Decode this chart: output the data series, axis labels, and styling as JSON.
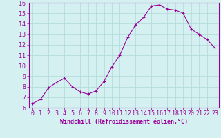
{
  "x": [
    0,
    1,
    2,
    3,
    4,
    5,
    6,
    7,
    8,
    9,
    10,
    11,
    12,
    13,
    14,
    15,
    16,
    17,
    18,
    19,
    20,
    21,
    22,
    23
  ],
  "y": [
    6.4,
    6.8,
    7.9,
    8.4,
    8.8,
    8.0,
    7.5,
    7.3,
    7.6,
    8.5,
    9.9,
    11.0,
    12.7,
    13.9,
    14.6,
    15.7,
    15.8,
    15.4,
    15.3,
    15.0,
    13.5,
    13.0,
    12.5,
    11.7
  ],
  "line_color": "#990099",
  "marker": "+",
  "marker_size": 3,
  "marker_lw": 0.8,
  "line_width": 0.8,
  "bg_color": "#d4f0f0",
  "grid_color": "#b0d8d8",
  "xlabel": "Windchill (Refroidissement éolien,°C)",
  "xlim": [
    -0.5,
    23.5
  ],
  "ylim": [
    6,
    16
  ],
  "yticks": [
    6,
    7,
    8,
    9,
    10,
    11,
    12,
    13,
    14,
    15,
    16
  ],
  "xticks": [
    0,
    1,
    2,
    3,
    4,
    5,
    6,
    7,
    8,
    9,
    10,
    11,
    12,
    13,
    14,
    15,
    16,
    17,
    18,
    19,
    20,
    21,
    22,
    23
  ],
  "tick_color": "#990099",
  "label_color": "#990099",
  "label_fontsize": 6,
  "tick_fontsize": 6,
  "spine_color": "#990099"
}
